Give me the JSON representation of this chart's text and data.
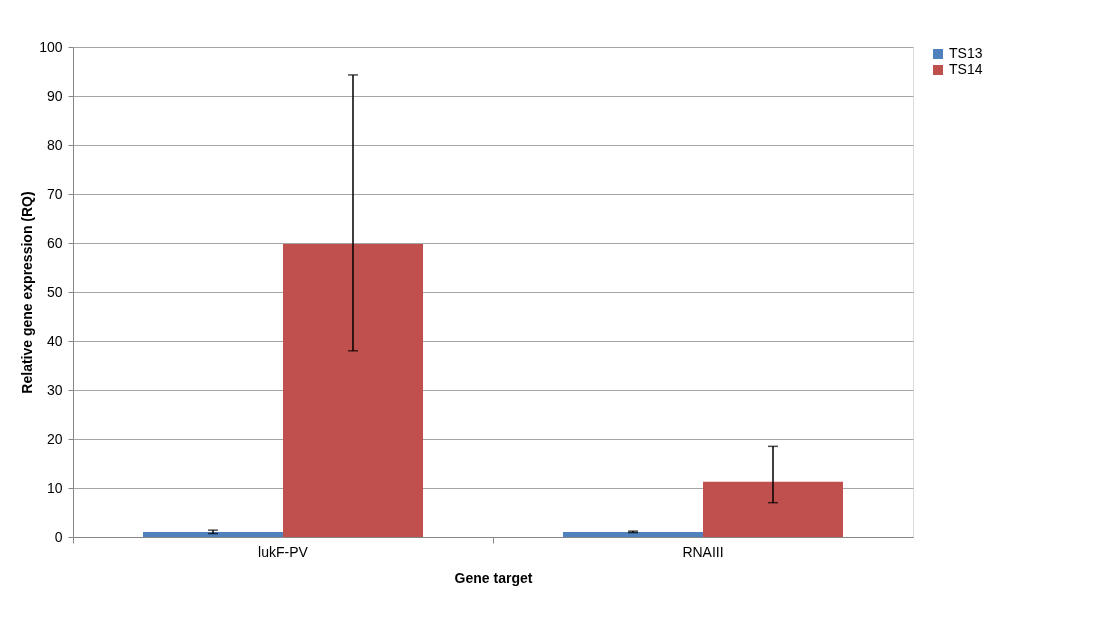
{
  "chart_data": {
    "type": "bar",
    "xlabel": "Gene target",
    "ylabel": "Relative gene expression (RQ)",
    "categories": [
      "lukF-PV",
      "RNAIII"
    ],
    "series": [
      {
        "name": "TS13",
        "color": "#4f81bd",
        "values": [
          1,
          1
        ],
        "errors": [
          [
            0.7,
            1.4
          ],
          [
            0.9,
            1.2
          ]
        ]
      },
      {
        "name": "TS14",
        "color": "#c0504d",
        "values": [
          59.8,
          11.3
        ],
        "errors": [
          [
            38,
            94.3
          ],
          [
            7,
            18.5
          ]
        ]
      }
    ],
    "ylim": [
      0,
      100
    ],
    "yticks": [
      0,
      10,
      20,
      30,
      40,
      50,
      60,
      70,
      80,
      90,
      100
    ],
    "grid": "y",
    "legend": "top right"
  }
}
